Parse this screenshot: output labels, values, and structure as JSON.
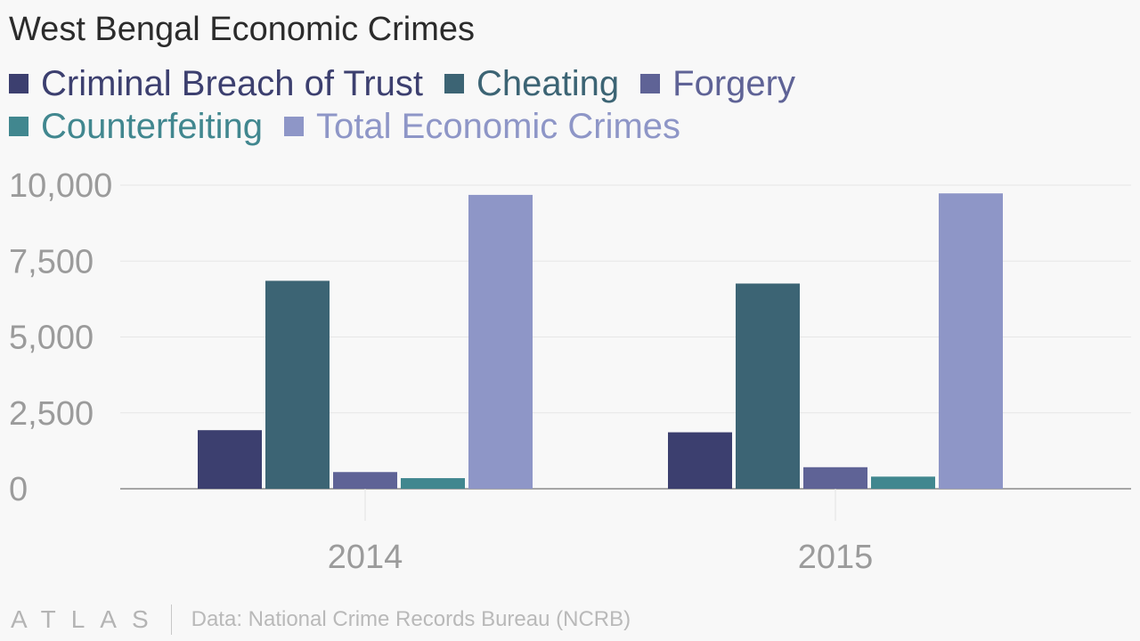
{
  "chart_data": {
    "type": "bar",
    "title": "West Bengal Economic Crimes",
    "categories": [
      "2014",
      "2015"
    ],
    "series": [
      {
        "name": "Criminal Breach of Trust",
        "color": "#3c3f6f",
        "values": [
          1930,
          1860
        ]
      },
      {
        "name": "Cheating",
        "color": "#3c6474",
        "values": [
          6850,
          6760
        ]
      },
      {
        "name": "Forgery",
        "color": "#5f6396",
        "values": [
          550,
          710
        ]
      },
      {
        "name": "Counterfeiting",
        "color": "#41878f",
        "values": [
          350,
          400
        ]
      },
      {
        "name": "Total Economic Crimes",
        "color": "#8e96c7",
        "values": [
          9680,
          9730
        ]
      }
    ],
    "y_ticks": [
      "0",
      "2,500",
      "5,000",
      "7,500",
      "10,000"
    ],
    "y_tick_values": [
      0,
      2500,
      5000,
      7500,
      10000
    ],
    "ylim": [
      0,
      10000
    ],
    "xlabel": "",
    "ylabel": "",
    "grid": true,
    "legend_position": "top-left"
  },
  "footer": {
    "brand": "ATLAS",
    "source": "Data: National Crime Records Bureau (NCRB)"
  }
}
